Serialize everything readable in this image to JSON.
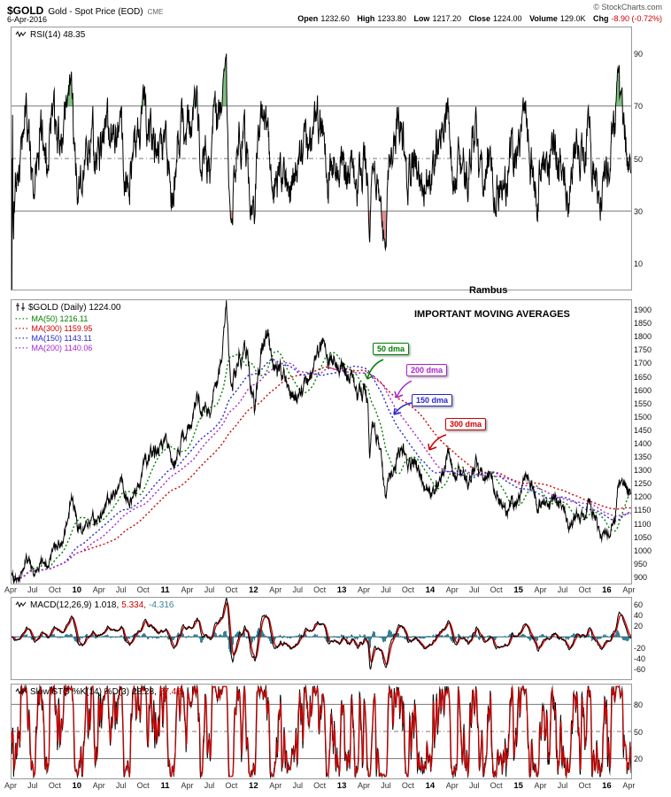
{
  "header": {
    "symbol": "$GOLD",
    "title": "Gold - Spot Price (EOD)",
    "exchange": "CME",
    "date": "6-Apr-2016",
    "credit": "© StockCharts.com",
    "quote": {
      "open_label": "Open",
      "open": "1232.60",
      "high_label": "High",
      "high": "1233.80",
      "low_label": "Low",
      "low": "1217.20",
      "close_label": "Close",
      "close": "1224.00",
      "volume_label": "Volume",
      "volume": "129.0K",
      "chg_label": "Chg",
      "chg": "-8.90 (-0.72%)",
      "chg_color": "#cc0000"
    }
  },
  "annotations": {
    "watermark": "Rambus",
    "headline": "IMPORTANT MOVING AVERAGES",
    "callouts": [
      {
        "label": "50 dma",
        "color": "#008000"
      },
      {
        "label": "200 dma",
        "color": "#aa22cc"
      },
      {
        "label": "150 dma",
        "color": "#2828c8"
      },
      {
        "label": "300 dma",
        "color": "#cc0000"
      }
    ]
  },
  "chart_data": [
    {
      "id": "rsi",
      "type": "line",
      "label": "RSI(14) 48.35",
      "indicator": "RSI",
      "period": 14,
      "last_value": 48.35,
      "ylim": [
        0,
        100
      ],
      "yticks": [
        90,
        70,
        50,
        30,
        10
      ],
      "bands": {
        "overbought": 70,
        "mid": 50,
        "oversold": 30
      },
      "line_color": "#000000",
      "fill_overbought": "rgba(0,130,0,0.5)",
      "fill_oversold": "rgba(190,30,30,0.5)"
    },
    {
      "id": "price",
      "type": "line",
      "label": "$GOLD (Daily) 1224.00",
      "last_close": 1224.0,
      "ylim": [
        875,
        1935
      ],
      "yticks": [
        1900,
        1850,
        1800,
        1750,
        1700,
        1650,
        1600,
        1550,
        1500,
        1450,
        1400,
        1350,
        1300,
        1250,
        1200,
        1150,
        1100,
        1050,
        1000,
        950,
        900
      ],
      "x_axis_labels": [
        "Apr",
        "Jul",
        "Oct",
        "10",
        "Apr",
        "Jul",
        "Oct",
        "11",
        "Apr",
        "Jul",
        "Oct",
        "12",
        "Apr",
        "Jul",
        "Oct",
        "13",
        "Apr",
        "Jul",
        "Oct",
        "14",
        "Apr",
        "Jul",
        "Oct",
        "15",
        "Apr",
        "Jul",
        "Oct",
        "16",
        "Apr"
      ],
      "line_color": "#000000",
      "legend": [
        {
          "label": "MA(50) 1216.11",
          "period": 50,
          "value": 1216.11,
          "color": "#008000"
        },
        {
          "label": "MA(300) 1159.95",
          "period": 300,
          "value": 1159.95,
          "color": "#cc0000"
        },
        {
          "label": "MA(150) 1143.11",
          "period": 150,
          "value": 1143.11,
          "color": "#2828c8"
        },
        {
          "label": "MA(200) 1140.06",
          "period": 200,
          "value": 1140.06,
          "color": "#aa22cc"
        }
      ],
      "anchors": [
        [
          0,
          905
        ],
        [
          1,
          888
        ],
        [
          2,
          975
        ],
        [
          3,
          927
        ],
        [
          4,
          953
        ],
        [
          5,
          953
        ],
        [
          6,
          1008
        ],
        [
          7,
          1040
        ],
        [
          8,
          1175
        ],
        [
          8.15,
          1210
        ],
        [
          9,
          1097
        ],
        [
          10,
          1078
        ],
        [
          11,
          1118
        ],
        [
          12,
          1113
        ],
        [
          13,
          1179
        ],
        [
          14,
          1215
        ],
        [
          15,
          1244
        ],
        [
          16,
          1169
        ],
        [
          17,
          1248
        ],
        [
          18,
          1307
        ],
        [
          19,
          1357
        ],
        [
          20,
          1383
        ],
        [
          21,
          1421
        ],
        [
          22,
          1327
        ],
        [
          23,
          1411
        ],
        [
          24,
          1439
        ],
        [
          25,
          1556
        ],
        [
          26,
          1536
        ],
        [
          27,
          1500
        ],
        [
          28,
          1628
        ],
        [
          29,
          1826
        ],
        [
          29.2,
          1902
        ],
        [
          29.8,
          1598
        ],
        [
          30,
          1620
        ],
        [
          31,
          1722
        ],
        [
          32,
          1746
        ],
        [
          33,
          1531
        ],
        [
          34,
          1737
        ],
        [
          34.9,
          1788
        ],
        [
          35,
          1770
        ],
        [
          36,
          1662
        ],
        [
          37,
          1651
        ],
        [
          38,
          1558
        ],
        [
          39,
          1597
        ],
        [
          40,
          1614
        ],
        [
          41,
          1648
        ],
        [
          42,
          1776
        ],
        [
          42.2,
          1792
        ],
        [
          43,
          1719
        ],
        [
          44,
          1715
        ],
        [
          45,
          1675
        ],
        [
          46,
          1660
        ],
        [
          47,
          1580
        ],
        [
          48,
          1598
        ],
        [
          48.4,
          1555
        ],
        [
          48.65,
          1352
        ],
        [
          49,
          1469
        ],
        [
          50,
          1394
        ],
        [
          50.9,
          1185
        ],
        [
          51,
          1235
        ],
        [
          52,
          1313
        ],
        [
          53,
          1395
        ],
        [
          54,
          1327
        ],
        [
          55,
          1324
        ],
        [
          56,
          1253
        ],
        [
          57,
          1205
        ],
        [
          58,
          1244
        ],
        [
          59,
          1326
        ],
        [
          59.5,
          1382
        ],
        [
          60,
          1291
        ],
        [
          61,
          1288
        ],
        [
          62,
          1250
        ],
        [
          63,
          1327
        ],
        [
          64,
          1282
        ],
        [
          65,
          1287
        ],
        [
          66,
          1208
        ],
        [
          67,
          1173
        ],
        [
          67.2,
          1142
        ],
        [
          68,
          1175
        ],
        [
          69,
          1184
        ],
        [
          69.7,
          1296
        ],
        [
          70,
          1283
        ],
        [
          71,
          1213
        ],
        [
          71.6,
          1150
        ],
        [
          72,
          1183
        ],
        [
          73,
          1184
        ],
        [
          74,
          1191
        ],
        [
          75,
          1172
        ],
        [
          75.8,
          1082
        ],
        [
          76,
          1095
        ],
        [
          77,
          1135
        ],
        [
          78,
          1115
        ],
        [
          78.5,
          1183
        ],
        [
          79,
          1142
        ],
        [
          80,
          1065
        ],
        [
          80.5,
          1050
        ],
        [
          81,
          1061
        ],
        [
          82,
          1118
        ],
        [
          82.4,
          1245
        ],
        [
          83,
          1239
        ],
        [
          83.3,
          1262
        ],
        [
          84,
          1233
        ],
        [
          84.2,
          1224
        ]
      ]
    },
    {
      "id": "macd",
      "type": "line",
      "label_parts": {
        "name": "MACD(12,26,9)",
        "macd_value": "1.018,",
        "signal_value": "5.334,",
        "hist_value": "-4.316"
      },
      "values": {
        "macd": 1.018,
        "signal": 5.334,
        "histogram": -4.316
      },
      "ylim": [
        -78,
        72
      ],
      "yticks": [
        60,
        40,
        20,
        -20,
        -40,
        -60
      ],
      "colors": {
        "macd": "#000000",
        "signal": "#cc0000",
        "hist": "#3a7f96",
        "zero": "#2b6e80"
      }
    },
    {
      "id": "sto",
      "type": "line",
      "label_parts": {
        "name": "Slow STO %K(14) %D(3)",
        "k_value": "28.28,",
        "d_value": "27.48"
      },
      "values": {
        "k": 28.28,
        "d": 27.48
      },
      "ylim": [
        -2,
        102
      ],
      "yticks": [
        80,
        50,
        20
      ],
      "bands": {
        "upper": 80,
        "mid": 50,
        "lower": 20
      },
      "colors": {
        "k": "#000000",
        "d": "#cc0000"
      }
    }
  ]
}
